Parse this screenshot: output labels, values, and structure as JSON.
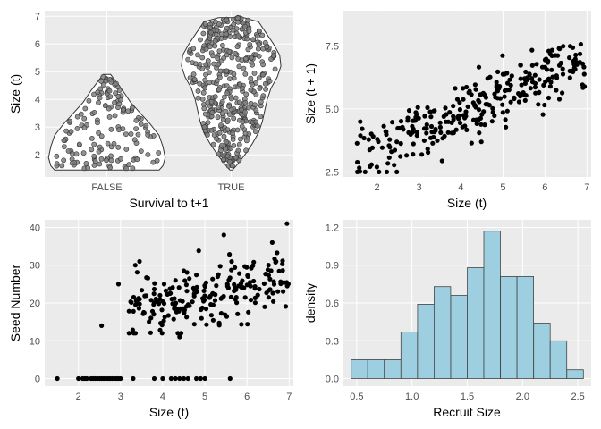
{
  "colors": {
    "panel_bg": "#ebebeb",
    "grid_major": "#ffffff",
    "point_fill": "#000000",
    "violin_point_fill": "#7f7f7f",
    "violin_fill": "#ffffff",
    "hist_fill": "#9dcfe0",
    "hist_edge": "#454545"
  },
  "chart_data": [
    {
      "id": "survival-violin",
      "type": "scatter",
      "subtype": "violin-with-jittered-points",
      "xlabel": "Survival to t+1",
      "ylabel": "Size (t)",
      "categories": [
        "FALSE",
        "TRUE"
      ],
      "ylim": [
        1.2,
        7.2
      ],
      "yticks": [
        2,
        3,
        4,
        5,
        6,
        7
      ],
      "grid": true,
      "violin_profiles": [
        {
          "category": "FALSE",
          "y": [
            1.45,
            1.6,
            1.9,
            2.3,
            2.7,
            3.1,
            3.5,
            3.9,
            4.3,
            4.6,
            4.9
          ],
          "half_width": [
            0.42,
            0.45,
            0.47,
            0.45,
            0.42,
            0.35,
            0.27,
            0.19,
            0.13,
            0.08,
            0.03
          ]
        },
        {
          "category": "TRUE",
          "y": [
            1.45,
            1.6,
            2.0,
            2.4,
            2.8,
            3.2,
            3.6,
            4.0,
            4.4,
            4.8,
            5.2,
            5.6,
            6.0,
            6.4,
            6.8,
            6.95
          ],
          "half_width": [
            0.01,
            0.04,
            0.11,
            0.17,
            0.22,
            0.25,
            0.27,
            0.29,
            0.32,
            0.37,
            0.4,
            0.39,
            0.34,
            0.28,
            0.22,
            0.1
          ]
        }
      ],
      "points": [
        {
          "category": "FALSE",
          "n": 150,
          "ymin": 1.5,
          "ymax": 4.9
        },
        {
          "category": "TRUE",
          "n": 420,
          "ymin": 1.5,
          "ymax": 6.95
        }
      ]
    },
    {
      "id": "size-growth-scatter",
      "type": "scatter",
      "xlabel": "Size (t)",
      "ylabel": "Size (t + 1)",
      "xlim": [
        1.2,
        7.1
      ],
      "ylim": [
        2.3,
        8.9
      ],
      "xticks": [
        2,
        3,
        4,
        5,
        6,
        7
      ],
      "yticks": [
        2.5,
        5.0,
        7.5
      ],
      "ytick_labels": [
        "2.5",
        "5.0",
        "7.5"
      ],
      "grid": true,
      "trend": {
        "intercept": 1.9,
        "slope": 0.73,
        "spread": 1.15,
        "n": 300
      }
    },
    {
      "id": "seed-number-scatter",
      "type": "scatter",
      "xlabel": "Size (t)",
      "ylabel": "Seed Number",
      "xlim": [
        1.2,
        7.1
      ],
      "ylim": [
        -2,
        42
      ],
      "xticks": [
        2,
        3,
        4,
        5,
        6,
        7
      ],
      "yticks": [
        0,
        10,
        20,
        30,
        40
      ],
      "grid": true,
      "zero_points_x": [
        1.5,
        2.0,
        2.1,
        2.15,
        2.2,
        2.3,
        2.35,
        2.4,
        2.45,
        2.5,
        2.55,
        2.6,
        2.65,
        2.7,
        2.75,
        2.8,
        2.85,
        2.9,
        2.95,
        3.0,
        3.3,
        3.8,
        4.0,
        4.2,
        4.3,
        4.4,
        4.5,
        4.6,
        4.8,
        4.9,
        5.0,
        5.6
      ],
      "highlighted_points": [
        {
          "x": 2.55,
          "y": 14
        },
        {
          "x": 2.95,
          "y": 25
        },
        {
          "x": 3.35,
          "y": 30
        },
        {
          "x": 3.45,
          "y": 31
        },
        {
          "x": 4.4,
          "y": 11
        },
        {
          "x": 5.45,
          "y": 38
        },
        {
          "x": 6.6,
          "y": 36
        },
        {
          "x": 6.95,
          "y": 41
        }
      ],
      "cloud": {
        "x_from": 3.2,
        "x_to": 7.0,
        "intercept": 13.5,
        "slope": 1.6,
        "spread": 5.5,
        "n": 220
      }
    },
    {
      "id": "recruit-size-histogram",
      "type": "bar",
      "subtype": "histogram",
      "xlabel": "Recruit Size",
      "ylabel": "density",
      "bin_edges": [
        0.45,
        0.6,
        0.75,
        0.9,
        1.05,
        1.2,
        1.35,
        1.5,
        1.65,
        1.8,
        1.95,
        2.1,
        2.25,
        2.4,
        2.55
      ],
      "values": [
        0.15,
        0.15,
        0.15,
        0.37,
        0.59,
        0.73,
        0.66,
        0.88,
        1.17,
        0.81,
        0.81,
        0.44,
        0.3,
        0.07
      ],
      "xlim": [
        0.38,
        2.62
      ],
      "ylim": [
        -0.06,
        1.26
      ],
      "xticks": [
        0.5,
        1.0,
        1.5,
        2.0,
        2.5
      ],
      "xtick_labels": [
        "0.5",
        "1.0",
        "1.5",
        "2.0",
        "2.5"
      ],
      "yticks": [
        0.0,
        0.3,
        0.6,
        0.9,
        1.2
      ],
      "ytick_labels": [
        "0.0",
        "0.3",
        "0.6",
        "0.9",
        "1.2"
      ],
      "grid": true
    }
  ]
}
